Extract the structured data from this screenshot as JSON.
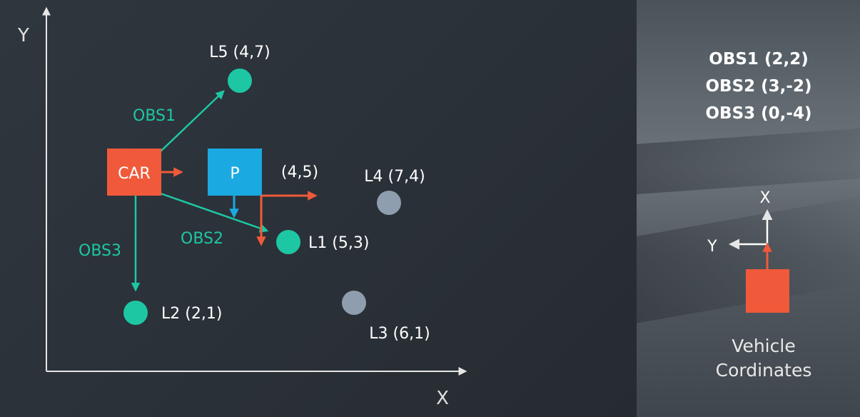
{
  "axes": {
    "x_label": "X",
    "y_label": "Y"
  },
  "car": {
    "label": "CAR",
    "color": "#f05a3a"
  },
  "particle": {
    "label": "P",
    "coord": "(4,5)",
    "color": "#1aa9e1"
  },
  "landmarks": [
    {
      "id": "L5",
      "text": "L5 (4,7)",
      "x": 4,
      "y": 7,
      "observed": true
    },
    {
      "id": "L4",
      "text": "L4 (7,4)",
      "x": 7,
      "y": 4,
      "observed": false
    },
    {
      "id": "L1",
      "text": "L1 (5,3)",
      "x": 5,
      "y": 3,
      "observed": true
    },
    {
      "id": "L2",
      "text": "L2 (2,1)",
      "x": 2,
      "y": 1,
      "observed": true
    },
    {
      "id": "L3",
      "text": "L3 (6,1)",
      "x": 6,
      "y": 1,
      "observed": false
    }
  ],
  "observation_labels": {
    "obs1": "OBS1",
    "obs2": "OBS2",
    "obs3": "OBS3"
  },
  "observations_list": [
    "OBS1 (2,2)",
    "OBS2 (3,-2)",
    "OBS3 (0,-4)"
  ],
  "vehicle_frame": {
    "x_label": "X",
    "y_label": "Y",
    "caption_line1": "Vehicle",
    "caption_line2": "Cordinates"
  },
  "colors": {
    "teal": "#1ec7a4",
    "gray_landmark": "#8f9eae",
    "axis": "#e6e6e6",
    "orange": "#f05a3a",
    "blue": "#1aa9e1"
  }
}
